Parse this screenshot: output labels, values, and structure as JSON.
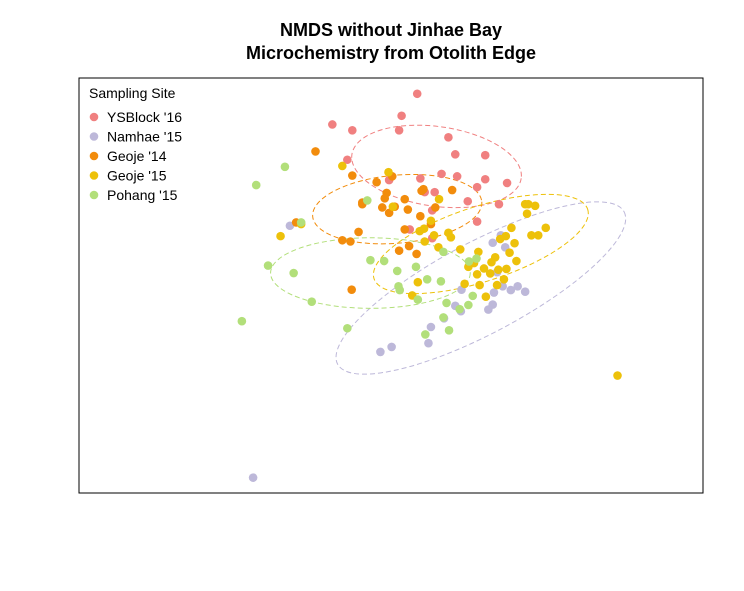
{
  "chart_data": {
    "type": "scatter",
    "title_lines": [
      "NMDS without Jinhae Bay",
      "Microchemistry from Otolith Edge"
    ],
    "xlabel": "",
    "ylabel": "",
    "xlim": [
      0,
      100
    ],
    "ylim": [
      0,
      100
    ],
    "axes_ticks": false,
    "grid": false,
    "legend": {
      "title": "Sampling Site",
      "placement": "top-left",
      "entries": [
        "YSBlock '16",
        "Namhae '15",
        "Geoje '14",
        "Geoje '15",
        "Pohang '15"
      ]
    },
    "series": [
      {
        "name": "YSBlock '16",
        "color": "#F08080",
        "points": [
          [
            54.2,
            96.2
          ],
          [
            51.7,
            90.9
          ],
          [
            40.6,
            88.8
          ],
          [
            43.8,
            87.4
          ],
          [
            51.3,
            87.4
          ],
          [
            59.2,
            85.7
          ],
          [
            60.3,
            81.6
          ],
          [
            65.1,
            81.4
          ],
          [
            43.0,
            80.3
          ],
          [
            49.7,
            75.4
          ],
          [
            54.7,
            75.8
          ],
          [
            58.1,
            76.9
          ],
          [
            60.6,
            76.3
          ],
          [
            63.8,
            73.7
          ],
          [
            65.1,
            75.6
          ],
          [
            68.6,
            74.7
          ],
          [
            57.0,
            72.5
          ],
          [
            55.4,
            72.5
          ],
          [
            62.3,
            70.3
          ],
          [
            67.3,
            69.6
          ],
          [
            56.6,
            68.1
          ],
          [
            53.0,
            63.5
          ],
          [
            56.6,
            61.4
          ],
          [
            63.8,
            65.4
          ]
        ]
      },
      {
        "name": "Namhae '15",
        "color": "#BDB8D9",
        "points": [
          [
            33.8,
            64.4
          ],
          [
            67.6,
            62.1
          ],
          [
            66.3,
            60.3
          ],
          [
            68.3,
            59.2
          ],
          [
            67.0,
            53.2
          ],
          [
            67.9,
            49.8
          ],
          [
            66.5,
            48.3
          ],
          [
            66.3,
            45.4
          ],
          [
            65.6,
            44.2
          ],
          [
            70.3,
            49.8
          ],
          [
            71.5,
            48.5
          ],
          [
            69.2,
            48.9
          ],
          [
            61.3,
            49.0
          ],
          [
            60.3,
            45.1
          ],
          [
            61.2,
            43.8
          ],
          [
            58.5,
            42.1
          ],
          [
            56.4,
            40.0
          ],
          [
            50.1,
            35.2
          ],
          [
            56.0,
            36.1
          ],
          [
            48.3,
            34.0
          ],
          [
            27.9,
            3.7
          ]
        ]
      },
      {
        "name": "Geoje '14",
        "color": "#F28C0C",
        "points": [
          [
            37.9,
            82.3
          ],
          [
            43.8,
            76.5
          ],
          [
            50.2,
            76.3
          ],
          [
            55.2,
            73.2
          ],
          [
            49.3,
            72.3
          ],
          [
            47.7,
            74.9
          ],
          [
            45.4,
            69.6
          ],
          [
            50.6,
            69.0
          ],
          [
            52.2,
            70.8
          ],
          [
            48.6,
            68.8
          ],
          [
            49.7,
            67.5
          ],
          [
            52.7,
            68.3
          ],
          [
            54.7,
            66.7
          ],
          [
            57.1,
            68.8
          ],
          [
            56.4,
            64.8
          ],
          [
            52.2,
            63.5
          ],
          [
            34.8,
            65.2
          ],
          [
            51.3,
            58.4
          ],
          [
            44.8,
            62.9
          ],
          [
            45.4,
            70.0
          ],
          [
            49.0,
            71.0
          ],
          [
            54.9,
            72.8
          ],
          [
            59.8,
            73.0
          ],
          [
            43.5,
            60.6
          ],
          [
            52.9,
            59.5
          ],
          [
            54.1,
            57.6
          ],
          [
            42.2,
            60.9
          ],
          [
            43.7,
            49.0
          ]
        ]
      },
      {
        "name": "Geoje '15",
        "color": "#EDC10A",
        "points": [
          [
            42.2,
            78.8
          ],
          [
            49.6,
            77.3
          ],
          [
            57.7,
            70.8
          ],
          [
            50.3,
            69.0
          ],
          [
            56.4,
            65.6
          ],
          [
            55.3,
            63.7
          ],
          [
            54.6,
            63.1
          ],
          [
            59.2,
            62.7
          ],
          [
            56.9,
            62.1
          ],
          [
            59.6,
            61.6
          ],
          [
            55.4,
            60.6
          ],
          [
            57.6,
            59.2
          ],
          [
            61.1,
            58.7
          ],
          [
            64.0,
            58.1
          ],
          [
            68.4,
            61.9
          ],
          [
            69.3,
            63.9
          ],
          [
            67.5,
            61.2
          ],
          [
            69.8,
            60.2
          ],
          [
            69.0,
            57.9
          ],
          [
            66.7,
            56.8
          ],
          [
            70.1,
            55.9
          ],
          [
            66.1,
            55.6
          ],
          [
            63.3,
            55.4
          ],
          [
            62.4,
            54.5
          ],
          [
            64.9,
            54.1
          ],
          [
            65.9,
            52.9
          ],
          [
            63.8,
            52.7
          ],
          [
            61.8,
            50.4
          ],
          [
            64.2,
            50.1
          ],
          [
            67.0,
            50.1
          ],
          [
            68.1,
            51.5
          ],
          [
            65.2,
            47.3
          ],
          [
            54.3,
            50.8
          ],
          [
            53.4,
            47.6
          ],
          [
            74.8,
            63.9
          ],
          [
            73.6,
            62.1
          ],
          [
            72.5,
            62.1
          ],
          [
            71.8,
            67.3
          ],
          [
            72.0,
            69.6
          ],
          [
            71.5,
            69.6
          ],
          [
            73.1,
            69.2
          ],
          [
            32.3,
            61.9
          ],
          [
            35.6,
            64.8
          ],
          [
            67.2,
            53.8
          ],
          [
            68.5,
            54.0
          ],
          [
            86.3,
            28.3
          ]
        ]
      },
      {
        "name": "Pohang '15",
        "color": "#B2DF7A",
        "points": [
          [
            33.0,
            78.6
          ],
          [
            28.4,
            74.2
          ],
          [
            35.6,
            65.2
          ],
          [
            30.3,
            54.8
          ],
          [
            34.4,
            53.0
          ],
          [
            37.3,
            46.1
          ],
          [
            26.1,
            41.4
          ],
          [
            43.0,
            39.7
          ],
          [
            46.7,
            56.1
          ],
          [
            48.9,
            55.9
          ],
          [
            54.0,
            54.5
          ],
          [
            51.0,
            53.5
          ],
          [
            51.2,
            49.8
          ],
          [
            51.4,
            48.9
          ],
          [
            55.8,
            51.5
          ],
          [
            58.9,
            45.8
          ],
          [
            62.4,
            45.3
          ],
          [
            63.1,
            47.5
          ],
          [
            61.0,
            44.3
          ],
          [
            58.4,
            42.3
          ],
          [
            55.5,
            38.2
          ],
          [
            59.3,
            39.2
          ],
          [
            58.0,
            51.0
          ],
          [
            46.2,
            70.5
          ],
          [
            54.3,
            46.6
          ],
          [
            62.5,
            55.8
          ],
          [
            63.7,
            56.5
          ],
          [
            58.4,
            58.1
          ]
        ]
      }
    ],
    "ellipses": [
      {
        "series": "YSBlock '16",
        "color": "#F08080",
        "cx": 57.3,
        "cy": 78.7,
        "rx": 13.7,
        "ry": 9.6,
        "rotation_deg": 8
      },
      {
        "series": "Namhae '15",
        "color": "#BDB8D9",
        "cx": 64.4,
        "cy": 49.4,
        "rx": 26.0,
        "ry": 11.0,
        "rotation_deg": -28
      },
      {
        "series": "Geoje '14",
        "color": "#F28C0C",
        "cx": 51.0,
        "cy": 68.4,
        "rx": 13.6,
        "ry": 8.2,
        "rotation_deg": -5
      },
      {
        "series": "Geoje '15",
        "color": "#EDC10A",
        "cx": 64.4,
        "cy": 60.0,
        "rx": 18.0,
        "ry": 9.0,
        "rotation_deg": -18
      },
      {
        "series": "Pohang '15",
        "color": "#B2DF7A",
        "cx": 46.7,
        "cy": 53.0,
        "rx": 16.0,
        "ry": 8.5,
        "rotation_deg": 0
      }
    ]
  }
}
